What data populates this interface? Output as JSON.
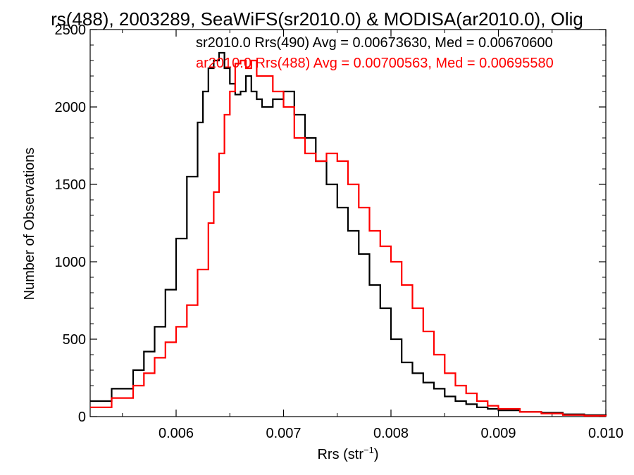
{
  "chart_data": {
    "type": "line",
    "title": "rs(488), 2003289, SeaWiFS(sr2010.0) & MODISA(ar2010.0), Olig",
    "xlabel": "Rrs (str",
    "xlabel_sup": "−1",
    "xlabel_end": ")",
    "ylabel": "Number of Observations",
    "xlim": [
      0.0052,
      0.01
    ],
    "ylim": [
      0,
      2500
    ],
    "xticks": [
      0.006,
      0.007,
      0.008,
      0.009,
      0.01
    ],
    "xtick_labels": [
      "0.006",
      "0.007",
      "0.008",
      "0.009",
      "0.010"
    ],
    "yticks": [
      0,
      500,
      1000,
      1500,
      2000,
      2500
    ],
    "ytick_labels": [
      "0",
      "500",
      "1000",
      "1500",
      "2000",
      "2500"
    ],
    "grid": false,
    "legend_position": "top-right",
    "colors": {
      "sr": "#000000",
      "ar": "#ff0000",
      "axes": "#000000"
    },
    "series": [
      {
        "name": "sr2010.0 Rrs(490) Avg = 0.00673630, Med = 0.00670600",
        "color": "#000000",
        "x": [
          0.0052,
          0.0054,
          0.0056,
          0.0057,
          0.0058,
          0.0059,
          0.006,
          0.0061,
          0.0062,
          0.00625,
          0.0063,
          0.00635,
          0.0064,
          0.00645,
          0.0065,
          0.00655,
          0.0066,
          0.00665,
          0.0067,
          0.00675,
          0.0068,
          0.0069,
          0.007,
          0.0071,
          0.0072,
          0.0073,
          0.0074,
          0.0075,
          0.0076,
          0.0077,
          0.0078,
          0.0079,
          0.008,
          0.0081,
          0.0082,
          0.0083,
          0.0084,
          0.0085,
          0.0086,
          0.0087,
          0.0088,
          0.0089,
          0.009,
          0.0092,
          0.0094,
          0.0096,
          0.0098,
          0.01
        ],
        "y": [
          100,
          180,
          300,
          420,
          580,
          820,
          1150,
          1550,
          1900,
          2100,
          2250,
          2300,
          2350,
          2250,
          2150,
          2080,
          2100,
          2200,
          2100,
          2050,
          2000,
          2050,
          2100,
          1950,
          1800,
          1650,
          1500,
          1350,
          1200,
          1050,
          850,
          700,
          500,
          350,
          280,
          220,
          180,
          130,
          100,
          80,
          60,
          50,
          40,
          30,
          25,
          15,
          10,
          5
        ]
      },
      {
        "name": "ar2010.0 Rrs(488) Avg = 0.00700563, Med = 0.00695580",
        "color": "#ff0000",
        "x": [
          0.0052,
          0.0054,
          0.0056,
          0.0057,
          0.0058,
          0.0059,
          0.006,
          0.0061,
          0.0062,
          0.0063,
          0.00635,
          0.0064,
          0.00645,
          0.0065,
          0.00655,
          0.0066,
          0.00665,
          0.0067,
          0.00675,
          0.0068,
          0.0069,
          0.007,
          0.0071,
          0.0072,
          0.0073,
          0.0074,
          0.0075,
          0.0076,
          0.0077,
          0.0078,
          0.0079,
          0.008,
          0.0081,
          0.0082,
          0.0083,
          0.0084,
          0.0085,
          0.0086,
          0.0087,
          0.0088,
          0.0089,
          0.009,
          0.0092,
          0.0094,
          0.0096,
          0.0098,
          0.01
        ],
        "y": [
          60,
          120,
          200,
          280,
          380,
          480,
          580,
          720,
          950,
          1250,
          1450,
          1700,
          1950,
          2100,
          2280,
          2300,
          2250,
          2300,
          2200,
          2200,
          2100,
          2000,
          1800,
          1700,
          1650,
          1700,
          1650,
          1500,
          1350,
          1200,
          1100,
          1000,
          850,
          700,
          550,
          400,
          280,
          200,
          150,
          100,
          70,
          50,
          30,
          20,
          10,
          5,
          3
        ]
      }
    ]
  }
}
